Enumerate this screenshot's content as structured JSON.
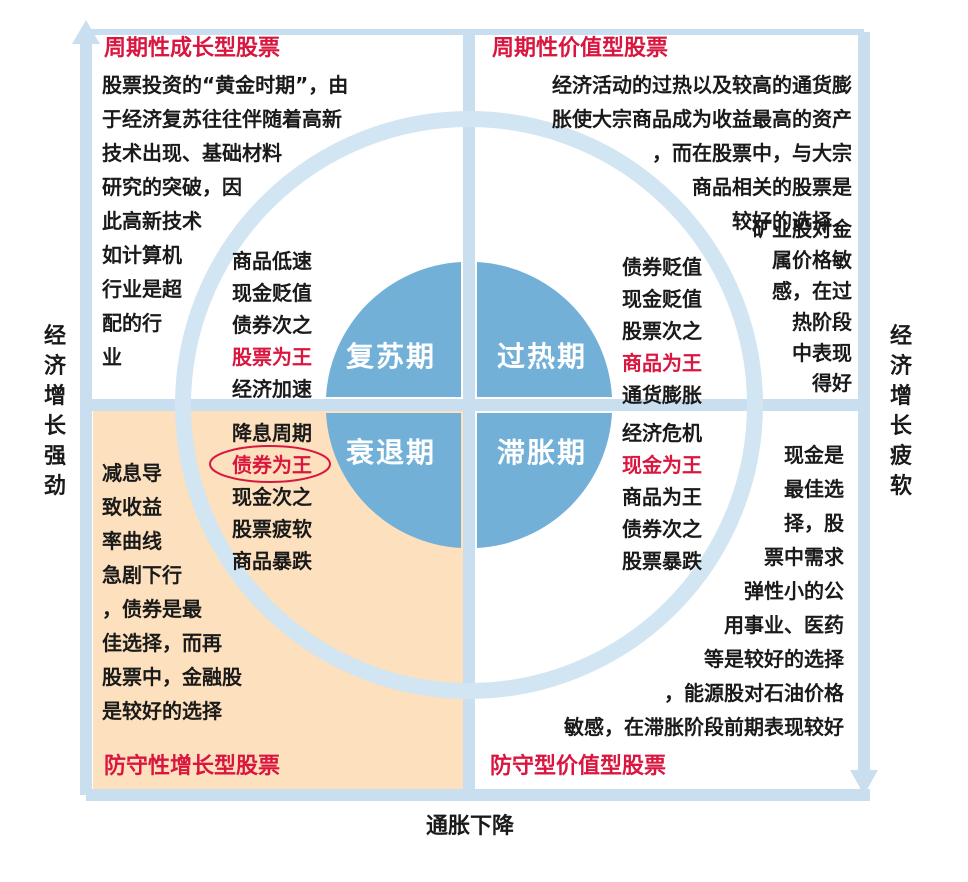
{
  "quadrants": {
    "top_left": {
      "title": "周期性成长型股票",
      "lines": [
        "股票投资的“黄金时期”，由",
        "于经济复苏往往伴随着高新",
        "技术出现、基础材料",
        "研究的突破，因",
        "此高新技术",
        "如计算机",
        "行业是超",
        "配的行",
        "业"
      ]
    },
    "top_right": {
      "title": "周期性价值型股票",
      "lines": [
        "经济活动的过热以及较高的通货膨",
        "胀使大宗商品成为收益最高的资产",
        "，而在股票中，与大宗",
        "商品相关的股票是",
        "较好的选择，",
        "矿业股对金",
        "属价格敏",
        "感，在过",
        "热阶段",
        "中表现",
        "得好"
      ]
    },
    "bottom_left": {
      "title": "防守性增长型股票",
      "lines": [
        "减息导",
        "致收益",
        "率曲线",
        "急剧下行",
        "，债券是最",
        "佳选择，而再",
        "股票中，金融股",
        "是较好的选择"
      ]
    },
    "bottom_right": {
      "title": "防守型价值型股票",
      "lines": [
        "现金是",
        "最佳选",
        "择，股",
        "票中需求",
        "弹性小的公",
        "用事业、医药",
        "等是较好的选择",
        "，能源股对石油价格",
        "敏感，在滞胀阶段前期表现较好"
      ]
    }
  },
  "ring": {
    "recovery": [
      "商品低速",
      "现金贬值",
      "债券次之",
      "股票为王",
      "经济加速"
    ],
    "overheat": [
      "债券贬值",
      "现金贬值",
      "股票次之",
      "商品为王",
      "通货膨胀"
    ],
    "recession": [
      "降息周期",
      "债券为王",
      "现金次之",
      "股票疲软",
      "商品暴跌"
    ],
    "stagflation": [
      "经济危机",
      "现金为王",
      "商品为王",
      "债券次之",
      "股票暴跌"
    ]
  },
  "phases": {
    "recovery": "复苏期",
    "overheat": "过热期",
    "recession": "衰退期",
    "stagflation": "滞胀期"
  },
  "axes": {
    "left": "经济增长强劲",
    "right": "经济增长疲软",
    "bottom": "通胀下降"
  },
  "colors": {
    "axis_blue": "#c9dff0",
    "ring_blue": "#d2e5f3",
    "core_blue": "#72b0d8",
    "bottom_left_fill": "#fde0bd",
    "highlight_red": "#d9163f"
  }
}
